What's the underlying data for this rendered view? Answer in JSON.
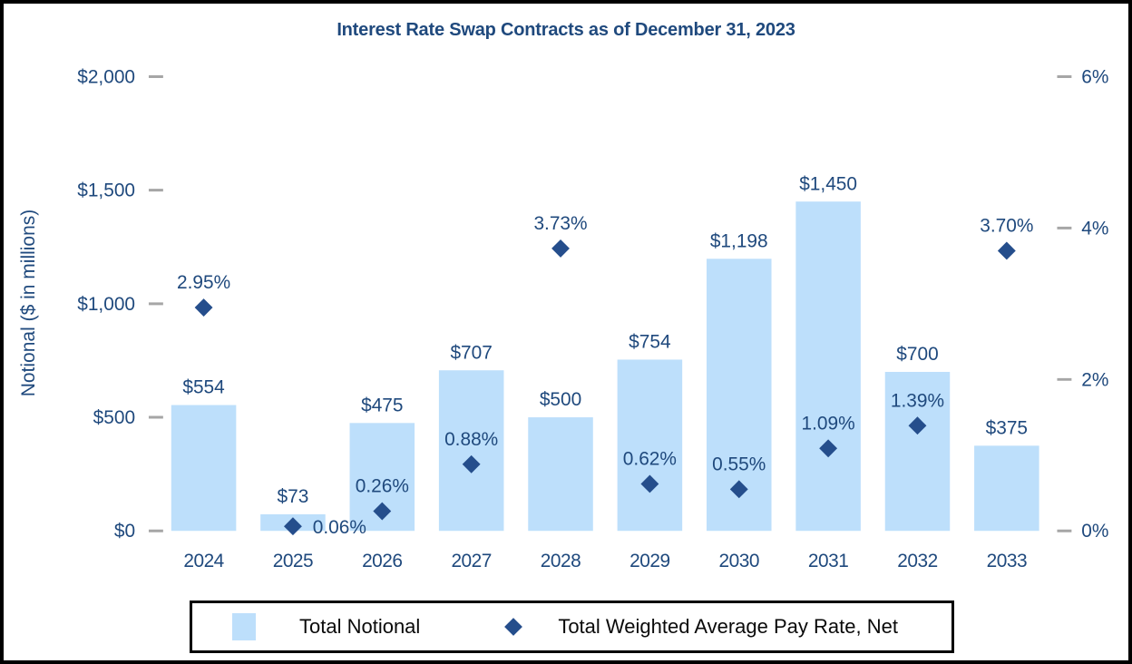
{
  "title": "Interest Rate Swap Contracts as of December 31, 2023",
  "colors": {
    "bar_fill": "#BDDFFB",
    "marker_fill": "#254E8C",
    "text_navy": "#1F497D",
    "tick_gray": "#A6A6A6",
    "legend_text": "#0a0a0a",
    "border_black": "#000000"
  },
  "chart_data": {
    "type": "bar",
    "subtype": "combo-bar-scatter",
    "title": "Interest Rate Swap Contracts as of December 31, 2023",
    "categories": [
      "2024",
      "2025",
      "2026",
      "2027",
      "2028",
      "2029",
      "2030",
      "2031",
      "2032",
      "2033"
    ],
    "series": [
      {
        "name": "Total Notional",
        "type": "bar",
        "axis": "left",
        "color": "#BDDFFB",
        "values": [
          554,
          73,
          475,
          707,
          500,
          754,
          1198,
          1450,
          700,
          375
        ],
        "labels": [
          "$554",
          "$73",
          "$475",
          "$707",
          "$500",
          "$754",
          "$1,198",
          "$1,450",
          "$700",
          "$375"
        ]
      },
      {
        "name": "Total Weighted Average Pay Rate, Net",
        "type": "scatter",
        "marker": "diamond",
        "axis": "right",
        "color": "#254E8C",
        "values": [
          2.95,
          0.06,
          0.26,
          0.88,
          3.73,
          0.62,
          0.55,
          1.09,
          1.39,
          3.7
        ],
        "labels": [
          "2.95%",
          "0.06%",
          "0.26%",
          "0.88%",
          "3.73%",
          "0.62%",
          "0.55%",
          "1.09%",
          "1.39%",
          "3.70%"
        ],
        "label_positions": [
          "above",
          "right",
          "above",
          "above",
          "above",
          "above",
          "above",
          "above",
          "above",
          "above"
        ]
      }
    ],
    "left_axis": {
      "label": "Notional ($ in millions)",
      "ticks": [
        "$2,000",
        "$1,500",
        "$1,000",
        "$500",
        "$0"
      ],
      "tick_values": [
        2000,
        1500,
        1000,
        500,
        0
      ],
      "range": [
        0,
        2000
      ]
    },
    "right_axis": {
      "ticks": [
        "6%",
        "4%",
        "2%",
        "0%"
      ],
      "tick_values": [
        6,
        4,
        2,
        0
      ],
      "range": [
        0,
        6
      ]
    },
    "grid": false,
    "legend": {
      "position": "bottom",
      "entries": [
        "Total Notional",
        "Total Weighted Average Pay Rate, Net"
      ]
    }
  }
}
